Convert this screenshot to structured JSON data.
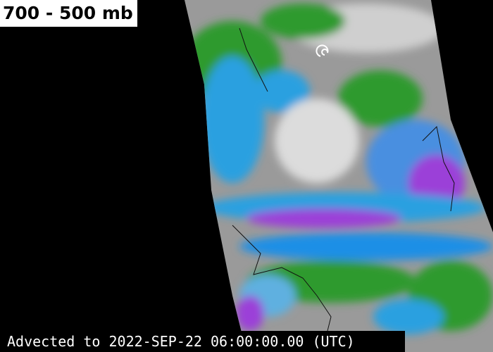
{
  "label": {
    "title": "700 - 500 mb"
  },
  "footer": {
    "timestamp": "Advected to 2022-SEP-22 06:00:00.00 (UTC)"
  }
}
